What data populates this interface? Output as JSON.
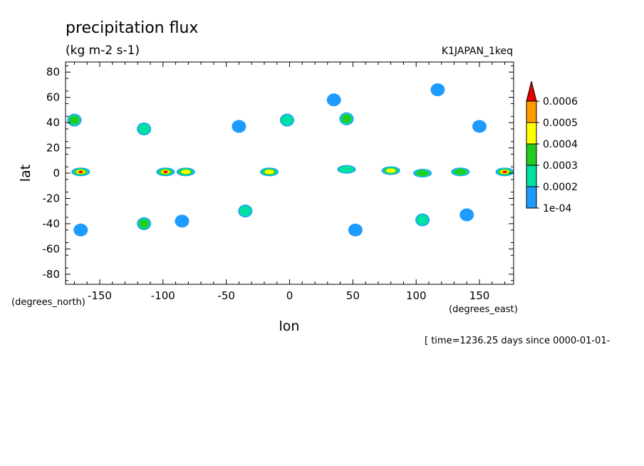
{
  "chart_data": {
    "type": "heatmap",
    "title": "precipitation flux",
    "subtitle": "(kg m-2 s-1)",
    "run_label": "K1JAPAN_1keq",
    "xlabel": "lon",
    "ylabel": "lat",
    "x_units": "(degrees_east)",
    "y_units": "(degrees_north)",
    "time_label": "[ time=1236.25 days since 0000-01-01-",
    "xlim": [
      -177,
      177
    ],
    "ylim": [
      -88,
      88
    ],
    "x_ticks": [
      -150,
      -100,
      -50,
      0,
      50,
      100,
      150
    ],
    "x_tick_labels": [
      "-150",
      "-100",
      "-50",
      "0",
      "50",
      "100",
      "150"
    ],
    "y_ticks": [
      80,
      60,
      40,
      20,
      0,
      -20,
      -40,
      -60,
      -80
    ],
    "y_tick_labels": [
      "80",
      "60",
      "40",
      "20",
      "0",
      "-20",
      "-40",
      "-60",
      "-80"
    ],
    "colorbar": {
      "levels": [
        0.0001,
        0.0002,
        0.0003,
        0.0004,
        0.0005,
        0.0006
      ],
      "labels": [
        "1e-04",
        "0.0002",
        "0.0003",
        "0.0004",
        "0.0005",
        "0.0006"
      ],
      "colors": [
        "#1e9bff",
        "#00e0a0",
        "#22cc22",
        "#ffff00",
        "#ff9900",
        "#e60000"
      ],
      "extend": "max"
    },
    "features": [
      {
        "lon": -170,
        "lat": 42,
        "max_level": 3
      },
      {
        "lon": -115,
        "lat": 35,
        "max_level": 2
      },
      {
        "lon": -40,
        "lat": 37,
        "max_level": 1
      },
      {
        "lon": -2,
        "lat": 42,
        "max_level": 2
      },
      {
        "lon": 35,
        "lat": 58,
        "max_level": 1
      },
      {
        "lon": 45,
        "lat": 43,
        "max_level": 3
      },
      {
        "lon": 117,
        "lat": 66,
        "max_level": 1
      },
      {
        "lon": 150,
        "lat": 37,
        "max_level": 1
      },
      {
        "lon": -165,
        "lat": 1,
        "max_level": 6
      },
      {
        "lon": -98,
        "lat": 1,
        "max_level": 6
      },
      {
        "lon": -82,
        "lat": 1,
        "max_level": 4
      },
      {
        "lon": -16,
        "lat": 1,
        "max_level": 4
      },
      {
        "lon": 45,
        "lat": 3,
        "max_level": 2
      },
      {
        "lon": 80,
        "lat": 2,
        "max_level": 4
      },
      {
        "lon": 105,
        "lat": 0,
        "max_level": 3
      },
      {
        "lon": 135,
        "lat": 1,
        "max_level": 3
      },
      {
        "lon": 170,
        "lat": 1,
        "max_level": 6
      },
      {
        "lon": -115,
        "lat": -40,
        "max_level": 3
      },
      {
        "lon": -35,
        "lat": -30,
        "max_level": 2
      },
      {
        "lon": -85,
        "lat": -38,
        "max_level": 1
      },
      {
        "lon": 105,
        "lat": -37,
        "max_level": 2
      },
      {
        "lon": 140,
        "lat": -33,
        "max_level": 1
      },
      {
        "lon": -165,
        "lat": -45,
        "max_level": 1
      },
      {
        "lon": 52,
        "lat": -45,
        "max_level": 1
      }
    ]
  }
}
